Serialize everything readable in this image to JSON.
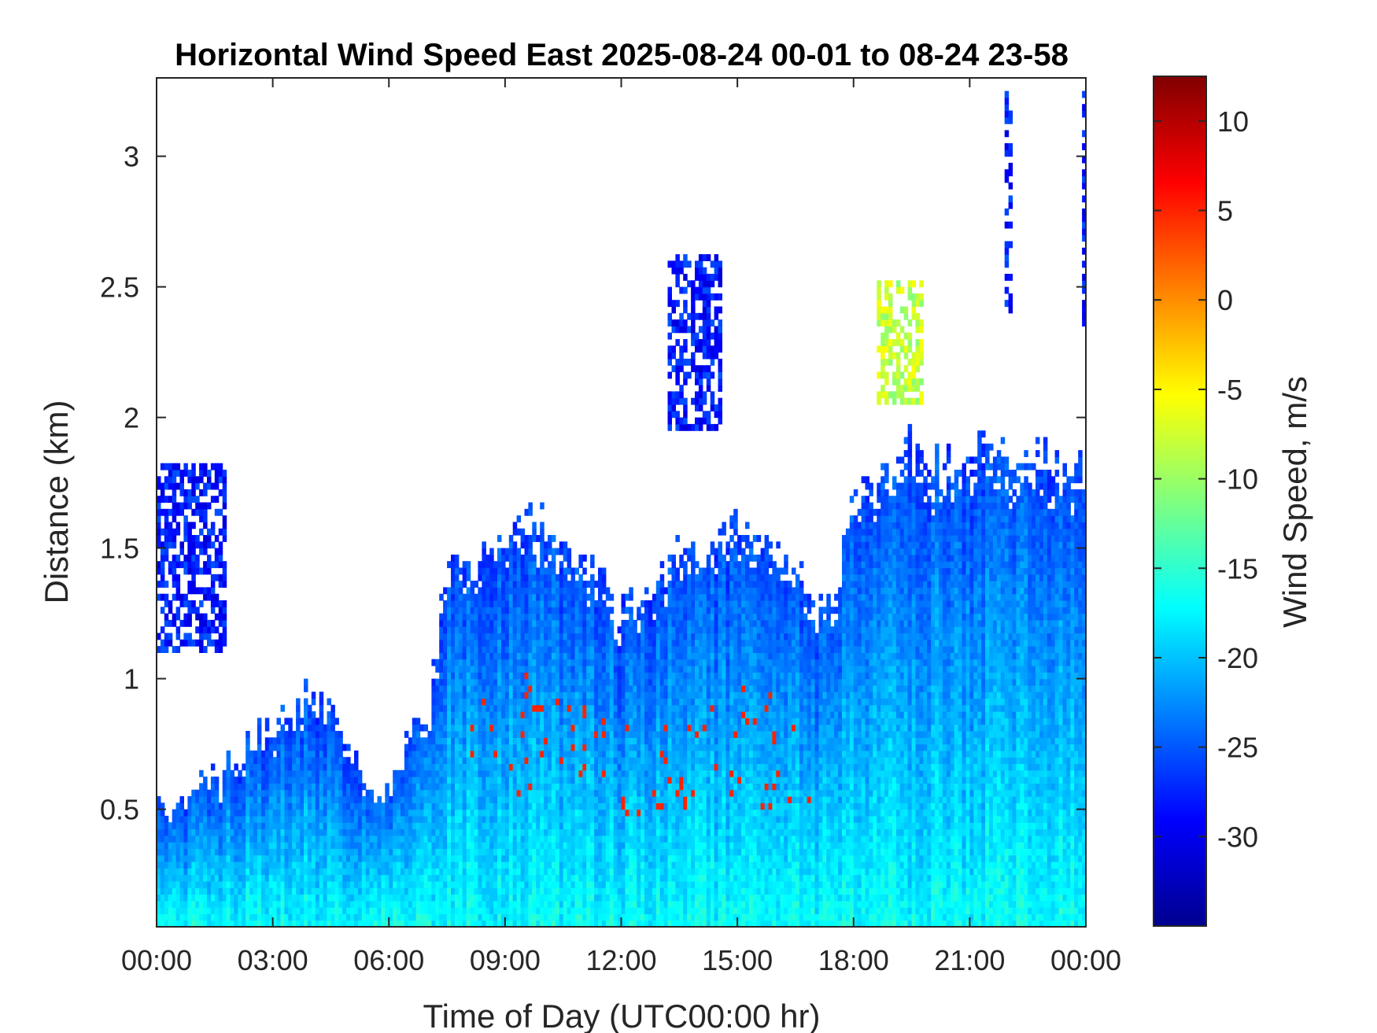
{
  "chart_data": {
    "type": "heatmap",
    "title": "Horizontal Wind Speed East 2025-08-24 00-01 to 08-24 23-58",
    "xlabel": "Time of Day (UTC00:00 hr)",
    "ylabel": "Distance (km)",
    "colorbar_label": "Wind Speed, m/s",
    "colormap": "jet",
    "xlim_hours": [
      0,
      24
    ],
    "ylim_km": [
      0.05,
      3.3
    ],
    "clim": [
      -35,
      12.5
    ],
    "x_ticks": [
      {
        "hour": 0,
        "label": "00:00"
      },
      {
        "hour": 3,
        "label": "03:00"
      },
      {
        "hour": 6,
        "label": "06:00"
      },
      {
        "hour": 9,
        "label": "09:00"
      },
      {
        "hour": 12,
        "label": "12:00"
      },
      {
        "hour": 15,
        "label": "15:00"
      },
      {
        "hour": 18,
        "label": "18:00"
      },
      {
        "hour": 21,
        "label": "21:00"
      },
      {
        "hour": 24,
        "label": "00:00"
      }
    ],
    "y_ticks": [
      {
        "km": 0.5,
        "label": "0.5"
      },
      {
        "km": 1.0,
        "label": "1"
      },
      {
        "km": 1.5,
        "label": "1.5"
      },
      {
        "km": 2.0,
        "label": "2"
      },
      {
        "km": 2.5,
        "label": "2.5"
      },
      {
        "km": 3.0,
        "label": "3"
      }
    ],
    "colorbar_ticks": [
      {
        "value": 10,
        "label": "10"
      },
      {
        "value": 5,
        "label": "5"
      },
      {
        "value": 0,
        "label": "0"
      },
      {
        "value": -5,
        "label": "-5"
      },
      {
        "value": -10,
        "label": "-10"
      },
      {
        "value": -15,
        "label": "-15"
      },
      {
        "value": -20,
        "label": "-20"
      },
      {
        "value": -25,
        "label": "-25"
      },
      {
        "value": -30,
        "label": "-30"
      }
    ],
    "boundary_layer_top_km": {
      "hours": [
        0,
        0.5,
        1.0,
        1.5,
        2.0,
        2.5,
        3.0,
        3.5,
        4.0,
        4.5,
        5.0,
        5.5,
        6.0,
        6.5,
        7.0,
        7.5,
        8.0,
        8.5,
        9.0,
        9.5,
        10.0,
        10.5,
        11.0,
        11.5,
        12.0,
        12.5,
        13.0,
        13.5,
        14.0,
        14.5,
        15.0,
        15.5,
        16.0,
        16.5,
        17.0,
        17.5,
        18.0,
        18.5,
        19.0,
        19.5,
        20.0,
        20.5,
        21.0,
        21.5,
        22.0,
        22.5,
        23.0,
        23.5,
        24.0
      ],
      "km": [
        0.55,
        0.5,
        0.6,
        0.6,
        0.65,
        0.75,
        0.78,
        0.85,
        0.95,
        0.85,
        0.75,
        0.6,
        0.55,
        0.8,
        0.82,
        1.45,
        1.4,
        1.5,
        1.55,
        1.6,
        1.6,
        1.5,
        1.45,
        1.35,
        1.25,
        1.3,
        1.4,
        1.5,
        1.45,
        1.55,
        1.6,
        1.55,
        1.5,
        1.45,
        1.3,
        1.3,
        1.75,
        1.7,
        1.85,
        1.9,
        1.8,
        1.85,
        1.9,
        1.9,
        1.85,
        1.85,
        1.85,
        1.8,
        1.8
      ]
    },
    "elevated_features": [
      {
        "hours": [
          0.0,
          1.8
        ],
        "km": [
          1.1,
          1.8
        ],
        "speed": -28
      },
      {
        "hours": [
          13.2,
          14.5
        ],
        "km": [
          1.95,
          2.6
        ],
        "speed": -28
      },
      {
        "hours": [
          18.6,
          19.8
        ],
        "km": [
          2.05,
          2.5
        ],
        "speed": -8
      },
      {
        "hours": [
          21.9,
          22.1
        ],
        "km": [
          2.4,
          3.25
        ],
        "speed": -28
      },
      {
        "hours": [
          23.9,
          24.0
        ],
        "km": [
          2.35,
          3.25
        ],
        "speed": -28
      }
    ]
  }
}
